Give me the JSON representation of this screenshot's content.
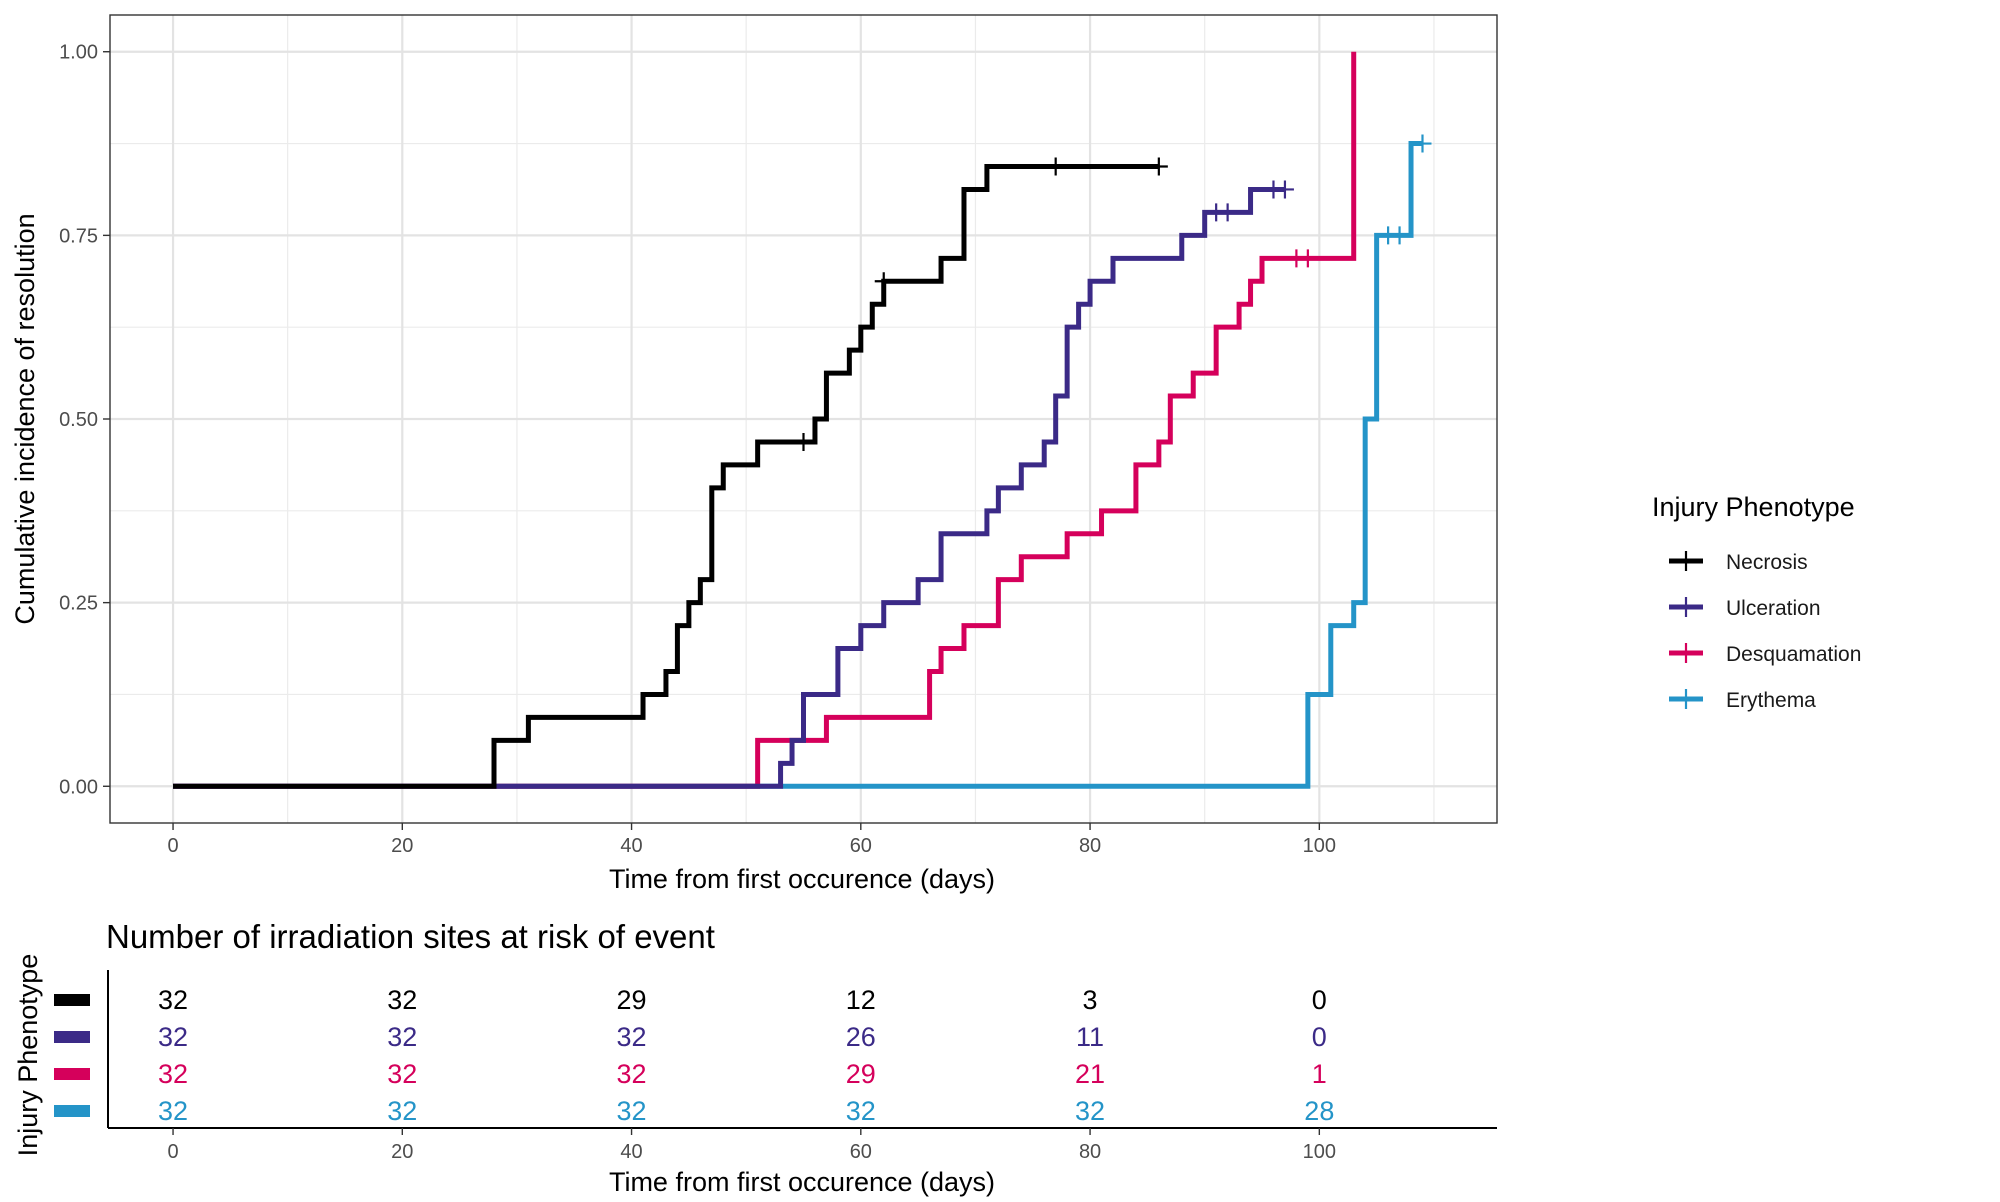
{
  "chart_data": [
    {
      "type": "line",
      "subtype": "step",
      "xlabel": "Time from first occurence (days)",
      "ylabel": "Cumulative incidence of resolution",
      "xlim": [
        -5.5,
        115.5
      ],
      "ylim": [
        -0.05,
        1.05
      ],
      "xticks": [
        0,
        20,
        40,
        60,
        80,
        100
      ],
      "yticks": [
        0,
        0.25,
        0.5,
        0.75,
        1
      ],
      "xtick_labels": [
        "0",
        "20",
        "40",
        "60",
        "80",
        "100"
      ],
      "ytick_labels": [
        "0.00",
        "0.25",
        "0.50",
        "0.75",
        "1.00"
      ],
      "grid": true,
      "legend": {
        "title": "Injury Phenotype",
        "position": "right",
        "entries": [
          "Necrosis",
          "Ulceration",
          "Desquamation",
          "Erythema"
        ]
      },
      "series": [
        {
          "name": "Necrosis",
          "color": "#000000",
          "x": [
            0,
            28,
            31,
            41,
            43,
            44,
            45,
            46,
            47,
            48,
            51,
            56,
            57,
            59,
            60,
            61,
            62,
            67,
            69,
            71,
            86
          ],
          "y": [
            0,
            0.0625,
            0.09375,
            0.125,
            0.15625,
            0.21875,
            0.25,
            0.28125,
            0.40625,
            0.4375,
            0.46875,
            0.5,
            0.5625,
            0.59375,
            0.625,
            0.65625,
            0.6875,
            0.71875,
            0.8125,
            0.84375,
            0.84375
          ],
          "censor_x": [
            55,
            62,
            77,
            86
          ],
          "censor_y": [
            0.46875,
            0.6875,
            0.84375,
            0.84375
          ]
        },
        {
          "name": "Ulceration",
          "color": "#3b2a87",
          "x": [
            0,
            53,
            54,
            55,
            58,
            60,
            62,
            65,
            67,
            71,
            72,
            74,
            76,
            77,
            78,
            79,
            80,
            82,
            88,
            90,
            94,
            97
          ],
          "y": [
            0,
            0.03125,
            0.0625,
            0.125,
            0.1875,
            0.21875,
            0.25,
            0.28125,
            0.34375,
            0.375,
            0.40625,
            0.4375,
            0.46875,
            0.53125,
            0.625,
            0.65625,
            0.6875,
            0.71875,
            0.75,
            0.78125,
            0.8125,
            0.8125
          ],
          "censor_x": [
            91,
            92,
            96,
            97
          ],
          "censor_y": [
            0.78125,
            0.78125,
            0.8125,
            0.8125
          ]
        },
        {
          "name": "Desquamation",
          "color": "#d5005b",
          "x": [
            0,
            51,
            57,
            66,
            67,
            69,
            72,
            74,
            78,
            81,
            84,
            86,
            87,
            89,
            91,
            93,
            94,
            95,
            97,
            103,
            103
          ],
          "y": [
            0,
            0.0625,
            0.09375,
            0.15625,
            0.1875,
            0.21875,
            0.28125,
            0.3125,
            0.34375,
            0.375,
            0.4375,
            0.46875,
            0.53125,
            0.5625,
            0.625,
            0.65625,
            0.6875,
            0.71875,
            0.71875,
            0.71875,
            1
          ],
          "censor_x": [
            98,
            99
          ],
          "censor_y": [
            0.71875,
            0.71875
          ]
        },
        {
          "name": "Erythema",
          "color": "#2494c8",
          "x": [
            0,
            99,
            101,
            103,
            104,
            105,
            108,
            109
          ],
          "y": [
            0,
            0.125,
            0.21875,
            0.25,
            0.5,
            0.75,
            0.875,
            0.875
          ],
          "censor_x": [
            106,
            107,
            109
          ],
          "censor_y": [
            0.75,
            0.75,
            0.875
          ]
        }
      ]
    },
    {
      "type": "table",
      "title": "Number of irradiation sites at risk of event",
      "xlabel": "Time from first occurence (days)",
      "ylabel": "Injury Phenotype",
      "xlim": [
        -5.5,
        115.5
      ],
      "xticks": [
        0,
        20,
        40,
        60,
        80,
        100
      ],
      "xtick_labels": [
        "0",
        "20",
        "40",
        "60",
        "80",
        "100"
      ],
      "rows": [
        {
          "name": "Necrosis",
          "color": "#000000",
          "values": [
            "32",
            "32",
            "29",
            "12",
            "3",
            "0"
          ]
        },
        {
          "name": "Ulceration",
          "color": "#3b2a87",
          "values": [
            "32",
            "32",
            "32",
            "26",
            "11",
            "0"
          ]
        },
        {
          "name": "Desquamation",
          "color": "#d5005b",
          "values": [
            "32",
            "32",
            "32",
            "29",
            "21",
            "1"
          ]
        },
        {
          "name": "Erythema",
          "color": "#2494c8",
          "values": [
            "32",
            "32",
            "32",
            "32",
            "32",
            "28"
          ]
        }
      ]
    }
  ]
}
